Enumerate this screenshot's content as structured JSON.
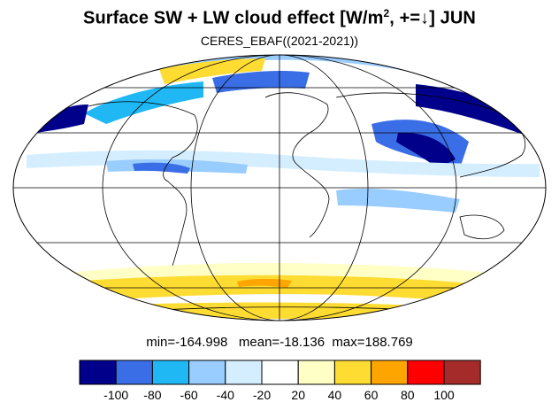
{
  "title": {
    "prefix": "Surface SW + LW cloud effect [W/m",
    "sup": "2",
    "suffix": ", +=↓]  JUN"
  },
  "subtitle": "CERES_EBAF((2021-2021))",
  "stats": {
    "min_label": "min=",
    "min": "-164.998",
    "mean_label": "mean=",
    "mean": "-18.136",
    "max_label": "max=",
    "max": "188.769"
  },
  "colorbar": {
    "colors": [
      "#00008b",
      "#3a6ee6",
      "#1fb8f5",
      "#99ccff",
      "#d5eeff",
      "#ffffff",
      "#ffffc6",
      "#ffdc32",
      "#ffa500",
      "#ff0000",
      "#a52a2a"
    ],
    "labels": [
      "-100",
      "-80",
      "-60",
      "-40",
      "-20",
      "20",
      "40",
      "60",
      "80",
      "100"
    ]
  },
  "map": {
    "projection": "mollweide",
    "graticule_lat": [
      -60,
      -30,
      0,
      30,
      60
    ],
    "graticule_lon": [
      -120,
      -60,
      0,
      60,
      120
    ],
    "palette": {
      "strong_neg": "#00008b",
      "neg_80": "#3a6ee6",
      "neg_60": "#1fb8f5",
      "neg_40": "#99ccff",
      "neg_20": "#d5eeff",
      "pos_20": "#ffffc6",
      "pos_40": "#ffdc32",
      "pos_60": "#ffa500"
    }
  }
}
